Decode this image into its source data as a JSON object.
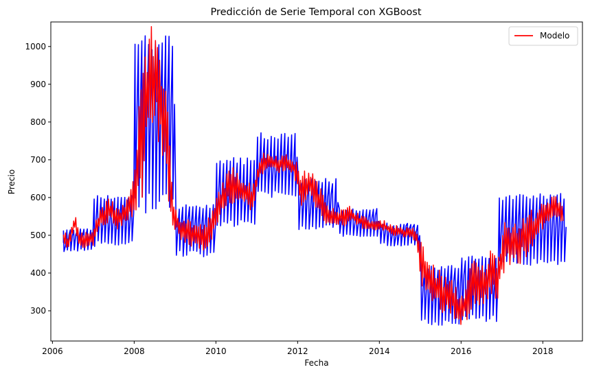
{
  "chart_data": {
    "type": "line",
    "title": "Predicción de Serie Temporal con XGBoost",
    "xlabel": "Fecha",
    "ylabel": "Precio",
    "xlim": [
      2005.96,
      2018.97
    ],
    "ylim": [
      220,
      1065
    ],
    "x_ticks": [
      2006,
      2008,
      2010,
      2012,
      2014,
      2016,
      2018
    ],
    "y_ticks": [
      300,
      400,
      500,
      600,
      700,
      800,
      900,
      1000
    ],
    "grid": false,
    "legend": {
      "position": "top-right",
      "entries": [
        "Modelo"
      ]
    },
    "series": [
      {
        "name": "",
        "color": "#0000ff",
        "x_start": 2006.27,
        "x_end": 2018.52,
        "spikes_per_year": 12,
        "segments": [
          {
            "x": [
              2006.27,
              2007.0
            ],
            "center": 490,
            "amp_up": 25,
            "amp_down": 35
          },
          {
            "x": [
              2007.0,
              2008.0
            ],
            "center": 545,
            "amp_up": 60,
            "amp_down": 75
          },
          {
            "x": [
              2008.0,
              2008.95
            ],
            "center": 850,
            "amp_up": 180,
            "amp_down": 300
          },
          {
            "x": [
              2008.95,
              2009.95
            ],
            "center": 525,
            "amp_up": 55,
            "amp_down": 80
          },
          {
            "x": [
              2009.95,
              2010.95
            ],
            "center": 620,
            "amp_up": 85,
            "amp_down": 100
          },
          {
            "x": [
              2010.95,
              2012.0
            ],
            "center": 690,
            "amp_up": 80,
            "amp_down": 90
          },
          {
            "x": [
              2012.0,
              2013.0
            ],
            "center": 590,
            "amp_up": 60,
            "amp_down": 75
          },
          {
            "x": [
              2013.0,
              2014.0
            ],
            "center": 540,
            "amp_up": 30,
            "amp_down": 45
          },
          {
            "x": [
              2014.0,
              2015.0
            ],
            "center": 510,
            "amp_up": 20,
            "amp_down": 40
          },
          {
            "x": [
              2015.0,
              2016.0
            ],
            "center": 360,
            "amp_up": 60,
            "amp_down": 100
          },
          {
            "x": [
              2016.0,
              2016.9
            ],
            "center": 380,
            "amp_up": 65,
            "amp_down": 110
          },
          {
            "x": [
              2016.9,
              2018.52
            ],
            "center": 530,
            "amp_up": 80,
            "amp_down": 110
          }
        ]
      },
      {
        "name": "Modelo",
        "color": "#ff0000",
        "x": [
          2006.27,
          2006.4,
          2006.55,
          2006.65,
          2006.8,
          2007.0,
          2007.2,
          2007.4,
          2007.6,
          2007.8,
          2007.95,
          2008.05,
          2008.2,
          2008.35,
          2008.5,
          2008.65,
          2008.8,
          2008.95,
          2009.1,
          2009.3,
          2009.5,
          2009.7,
          2009.9,
          2010.1,
          2010.3,
          2010.5,
          2010.7,
          2010.9,
          2011.1,
          2011.3,
          2011.5,
          2011.7,
          2011.9,
          2012.1,
          2012.3,
          2012.5,
          2012.7,
          2012.9,
          2013.1,
          2013.3,
          2013.5,
          2013.7,
          2013.9,
          2014.1,
          2014.3,
          2014.5,
          2014.7,
          2014.9,
          2015.05,
          2015.2,
          2015.4,
          2015.6,
          2015.8,
          2016.0,
          2016.15,
          2016.3,
          2016.5,
          2016.7,
          2016.9,
          2017.1,
          2017.3,
          2017.5,
          2017.7,
          2017.9,
          2018.1,
          2018.3,
          2018.52
        ],
        "y": [
          495,
          480,
          540,
          490,
          485,
          500,
          550,
          565,
          540,
          560,
          590,
          660,
          800,
          880,
          920,
          860,
          730,
          560,
          520,
          510,
          500,
          495,
          520,
          590,
          620,
          640,
          610,
          600,
          690,
          695,
          690,
          690,
          680,
          620,
          640,
          600,
          560,
          550,
          545,
          555,
          540,
          530,
          525,
          525,
          515,
          510,
          505,
          500,
          420,
          380,
          360,
          340,
          330,
          300,
          330,
          380,
          360,
          400,
          390,
          500,
          470,
          490,
          510,
          540,
          560,
          580,
          560
        ],
        "band": [
          20,
          20,
          30,
          20,
          20,
          30,
          30,
          35,
          30,
          35,
          40,
          100,
          200,
          150,
          160,
          150,
          140,
          40,
          45,
          40,
          35,
          35,
          40,
          45,
          50,
          50,
          40,
          40,
          30,
          25,
          25,
          25,
          30,
          45,
          45,
          40,
          35,
          30,
          25,
          25,
          20,
          15,
          15,
          15,
          15,
          15,
          15,
          20,
          60,
          60,
          60,
          55,
          50,
          45,
          55,
          70,
          60,
          65,
          70,
          70,
          60,
          60,
          60,
          40,
          30,
          30,
          30
        ]
      }
    ]
  }
}
